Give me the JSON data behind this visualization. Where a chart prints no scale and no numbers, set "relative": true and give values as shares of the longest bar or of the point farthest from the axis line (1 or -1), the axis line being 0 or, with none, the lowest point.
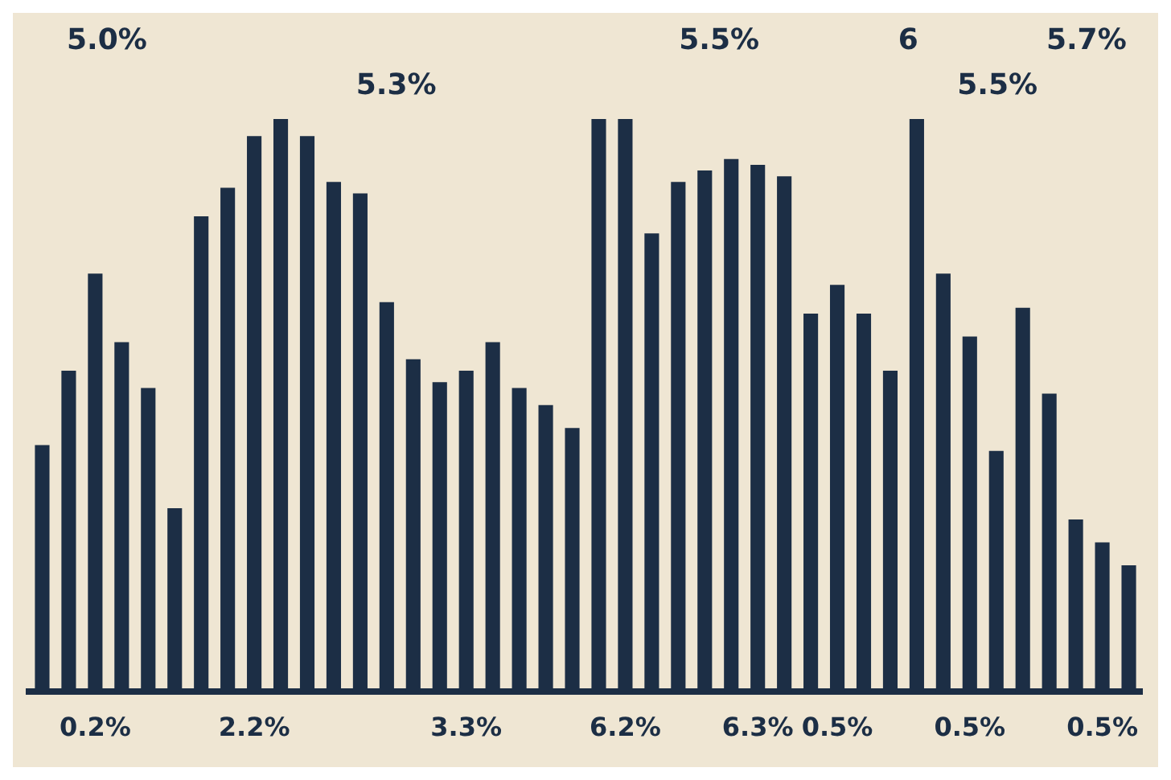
{
  "chart_data": {
    "type": "bar",
    "relative": true,
    "color": "#1c2e45",
    "categories": [
      null,
      null,
      "0.2%",
      null,
      null,
      null,
      null,
      null,
      "2.2%",
      null,
      null,
      null,
      null,
      null,
      null,
      null,
      "3.3%",
      null,
      null,
      null,
      null,
      null,
      "6.2%",
      null,
      null,
      null,
      null,
      "6.3%",
      null,
      null,
      "0.5%",
      null,
      null,
      null,
      null,
      "0.5%",
      null,
      null,
      null,
      null,
      "0.5%",
      null
    ],
    "values": [
      0.43,
      0.56,
      0.73,
      0.61,
      0.53,
      0.32,
      0.83,
      0.88,
      0.97,
      1,
      0.97,
      0.89,
      0.87,
      0.68,
      0.58,
      0.54,
      0.56,
      0.61,
      0.53,
      0.5,
      0.46,
      1,
      1,
      0.8,
      0.89,
      0.91,
      0.93,
      0.92,
      0.9,
      0.66,
      0.71,
      0.66,
      0.56,
      1,
      0.73,
      0.62,
      0.42,
      0.67,
      0.52,
      0.3,
      0.26,
      0.22
    ],
    "annotations": [
      "5.0%",
      "5.3%",
      "5.5%",
      "6",
      "5.5%",
      "5.7%"
    ],
    "grid": false,
    "legend": false
  }
}
